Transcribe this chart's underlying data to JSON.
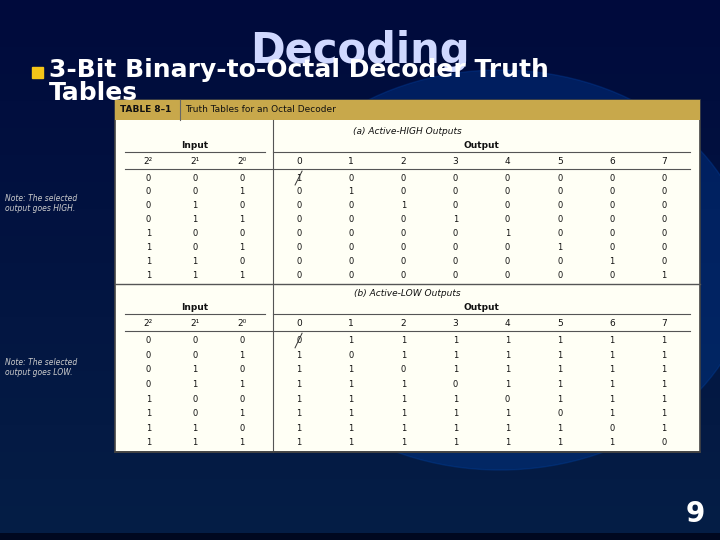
{
  "title": "Decoding",
  "bullet_line1": "3-Bit Binary-to-Octal Decoder Truth",
  "bullet_line2": "Tables",
  "page_num": "9",
  "title_color": "#d0d8ff",
  "bullet_color": "#ffffff",
  "bullet_marker_color": "#f5c518",
  "table_title": "TABLE 8–1",
  "table_subtitle": "Truth Tables for an Octal Decoder",
  "section_a": "(a) Active-HIGH Outputs",
  "section_b": "(b) Active-LOW Outputs",
  "note_a": "Note: The selected\noutput goes HIGH.",
  "note_b": "Note: The selected\noutput goes LOW.",
  "col_headers": [
    "2²",
    "2¹",
    "2⁰",
    "0",
    "1",
    "2",
    "3",
    "4",
    "5",
    "6",
    "7"
  ],
  "input_label": "Input",
  "output_label": "Output",
  "table_a_data": [
    [
      0,
      0,
      0,
      1,
      0,
      0,
      0,
      0,
      0,
      0,
      0
    ],
    [
      0,
      0,
      1,
      0,
      1,
      0,
      0,
      0,
      0,
      0,
      0
    ],
    [
      0,
      1,
      0,
      0,
      0,
      1,
      0,
      0,
      0,
      0,
      0
    ],
    [
      0,
      1,
      1,
      0,
      0,
      0,
      1,
      0,
      0,
      0,
      0
    ],
    [
      1,
      0,
      0,
      0,
      0,
      0,
      0,
      1,
      0,
      0,
      0
    ],
    [
      1,
      0,
      1,
      0,
      0,
      0,
      0,
      0,
      1,
      0,
      0
    ],
    [
      1,
      1,
      0,
      0,
      0,
      0,
      0,
      0,
      0,
      1,
      0
    ],
    [
      1,
      1,
      1,
      0,
      0,
      0,
      0,
      0,
      0,
      0,
      1
    ]
  ],
  "table_b_data": [
    [
      0,
      0,
      0,
      0,
      1,
      1,
      1,
      1,
      1,
      1,
      1
    ],
    [
      0,
      0,
      1,
      1,
      0,
      1,
      1,
      1,
      1,
      1,
      1
    ],
    [
      0,
      1,
      0,
      1,
      1,
      0,
      1,
      1,
      1,
      1,
      1
    ],
    [
      0,
      1,
      1,
      1,
      1,
      1,
      0,
      1,
      1,
      1,
      1
    ],
    [
      1,
      0,
      0,
      1,
      1,
      1,
      1,
      0,
      1,
      1,
      1
    ],
    [
      1,
      0,
      1,
      1,
      1,
      1,
      1,
      1,
      0,
      1,
      1
    ],
    [
      1,
      1,
      0,
      1,
      1,
      1,
      1,
      1,
      1,
      0,
      1
    ],
    [
      1,
      1,
      1,
      1,
      1,
      1,
      1,
      1,
      1,
      1,
      0
    ]
  ],
  "table_bg": "#fffff5",
  "table_header_bg": "#c8a84b",
  "table_border": "#444444",
  "grad_colors": [
    "#000020",
    "#000830",
    "#001060",
    "#002080",
    "#0030a0"
  ]
}
